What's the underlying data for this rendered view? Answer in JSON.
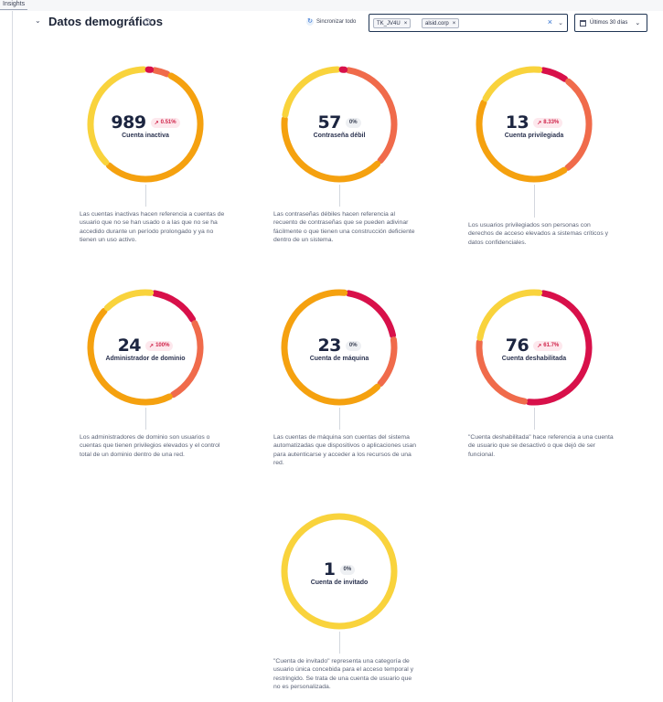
{
  "tab": {
    "label": "Insights"
  },
  "header": {
    "title": "Datos demográficos",
    "info_glyph": "i",
    "sync_label": "Sincronizar todo",
    "filters": [
      "TK_JV4U",
      "alsid.corp"
    ],
    "date_range": "Últimos 30 días"
  },
  "colors": {
    "yellow": "#f9d33c",
    "orange": "#f5a10f",
    "coral": "#f06b4b",
    "red": "#d8104a",
    "track": "#eef0f3"
  },
  "cards": [
    {
      "value": "989",
      "trend": "0.51%",
      "trend_up": true,
      "label": "Cuenta inactiva",
      "desc": "Las cuentas inactivas hacen referencia a cuentas de usuario que no se han usado o a las que no se ha accedido durante un período prolongado y ya no tienen un uso activo.",
      "segments": [
        {
          "color": "coral",
          "share": 0.05
        },
        {
          "color": "orange",
          "share": 0.55
        },
        {
          "color": "yellow",
          "share": 0.38
        },
        {
          "color": "red",
          "share": 0.02
        }
      ]
    },
    {
      "value": "57",
      "trend": "0%",
      "trend_up": false,
      "label": "Contraseña débil",
      "desc": "Las contraseñas débiles hacen referencia al recuento de contraseñas que se pueden adivinar fácilmente o que tienen una construcción deficiente dentro de un sistema.",
      "segments": [
        {
          "color": "coral",
          "share": 0.35
        },
        {
          "color": "orange",
          "share": 0.4
        },
        {
          "color": "yellow",
          "share": 0.23
        },
        {
          "color": "red",
          "share": 0.02
        }
      ]
    },
    {
      "value": "13",
      "trend": "8.33%",
      "trend_up": true,
      "label": "Cuenta privilegiada",
      "desc": "Los usuarios privilegiados son personas con derechos de acceso elevados a sistemas críticos y datos confidenciales.",
      "segments": [
        {
          "color": "red",
          "share": 0.08
        },
        {
          "color": "coral",
          "share": 0.3
        },
        {
          "color": "orange",
          "share": 0.42
        },
        {
          "color": "yellow",
          "share": 0.2
        }
      ]
    },
    {
      "value": "24",
      "trend": "100%",
      "trend_up": true,
      "label": "Administrador de dominio",
      "desc": "Los administradores de dominio son usuarios o cuentas que tienen privilegios elevados y el control total de un dominio dentro de una red.",
      "segments": [
        {
          "color": "red",
          "share": 0.15
        },
        {
          "color": "coral",
          "share": 0.25
        },
        {
          "color": "orange",
          "share": 0.45
        },
        {
          "color": "yellow",
          "share": 0.15
        }
      ]
    },
    {
      "value": "23",
      "trend": "0%",
      "trend_up": false,
      "label": "Cuenta de máquina",
      "desc": "Las cuentas de máquina son cuentas del sistema automatizadas que dispositivos o aplicaciones usan para autenticarse y acceder a los recursos de una red.",
      "segments": [
        {
          "color": "red",
          "share": 0.2
        },
        {
          "color": "coral",
          "share": 0.15
        },
        {
          "color": "orange",
          "share": 0.65
        }
      ]
    },
    {
      "value": "76",
      "trend": "61.7%",
      "trend_up": true,
      "label": "Cuenta deshabilitada",
      "desc": "\"Cuenta deshabilitada\" hace referencia a una cuenta de usuario que se desactivó o que dejó de ser funcional.",
      "segments": [
        {
          "color": "red",
          "share": 0.5
        },
        {
          "color": "coral",
          "share": 0.25
        },
        {
          "color": "yellow",
          "share": 0.25
        }
      ]
    },
    {
      "value": "1",
      "trend": "0%",
      "trend_up": false,
      "label": "Cuenta de invitado",
      "desc": "\"Cuenta de invitado\" representa una categoría de usuario única concebida para el acceso temporal y restringido. Se trata de una cuenta de usuario que no es personalizada.",
      "segments": [
        {
          "color": "yellow",
          "share": 1.0
        }
      ]
    }
  ]
}
